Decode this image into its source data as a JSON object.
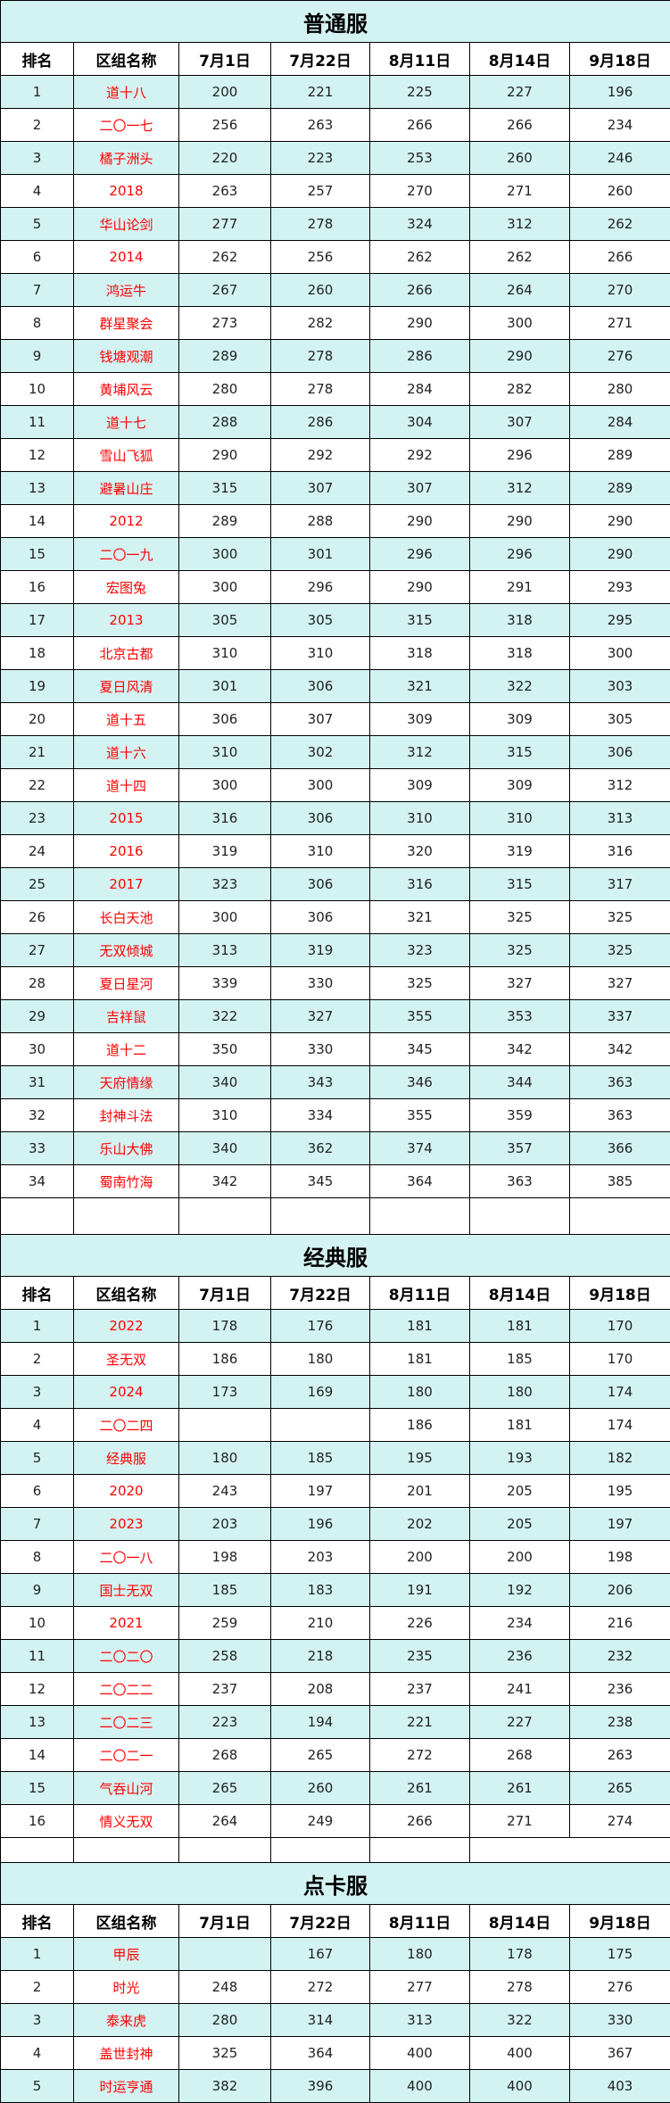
{
  "colors": {
    "band": "#d3f3f2",
    "name_text": "#ff0000",
    "border": "#000000"
  },
  "headers": [
    "排名",
    "区组名称",
    "7月1日",
    "7月22日",
    "8月11日",
    "8月14日",
    "9月18日"
  ],
  "sections": [
    {
      "title": "普通服",
      "rows": [
        [
          "1",
          "道十八",
          "200",
          "221",
          "225",
          "227",
          "196"
        ],
        [
          "2",
          "二〇一七",
          "256",
          "263",
          "266",
          "266",
          "234"
        ],
        [
          "3",
          "橘子洲头",
          "220",
          "223",
          "253",
          "260",
          "246"
        ],
        [
          "4",
          "2018",
          "263",
          "257",
          "270",
          "271",
          "260"
        ],
        [
          "5",
          "华山论剑",
          "277",
          "278",
          "324",
          "312",
          "262"
        ],
        [
          "6",
          "2014",
          "262",
          "256",
          "262",
          "262",
          "266"
        ],
        [
          "7",
          "鸿运牛",
          "267",
          "260",
          "266",
          "264",
          "270"
        ],
        [
          "8",
          "群星聚会",
          "273",
          "282",
          "290",
          "300",
          "271"
        ],
        [
          "9",
          "钱塘观潮",
          "289",
          "278",
          "286",
          "290",
          "276"
        ],
        [
          "10",
          "黄埔风云",
          "280",
          "278",
          "284",
          "282",
          "280"
        ],
        [
          "11",
          "道十七",
          "288",
          "286",
          "304",
          "307",
          "284"
        ],
        [
          "12",
          "雪山飞狐",
          "290",
          "292",
          "292",
          "296",
          "289"
        ],
        [
          "13",
          "避暑山庄",
          "315",
          "307",
          "307",
          "312",
          "289"
        ],
        [
          "14",
          "2012",
          "289",
          "288",
          "290",
          "290",
          "290"
        ],
        [
          "15",
          "二〇一九",
          "300",
          "301",
          "296",
          "296",
          "290"
        ],
        [
          "16",
          "宏图兔",
          "300",
          "296",
          "290",
          "291",
          "293"
        ],
        [
          "17",
          "2013",
          "305",
          "305",
          "315",
          "318",
          "295"
        ],
        [
          "18",
          "北京古都",
          "310",
          "310",
          "318",
          "318",
          "300"
        ],
        [
          "19",
          "夏日风清",
          "301",
          "306",
          "321",
          "322",
          "303"
        ],
        [
          "20",
          "道十五",
          "306",
          "307",
          "309",
          "309",
          "305"
        ],
        [
          "21",
          "道十六",
          "310",
          "302",
          "312",
          "315",
          "306"
        ],
        [
          "22",
          "道十四",
          "300",
          "300",
          "309",
          "309",
          "312"
        ],
        [
          "23",
          "2015",
          "316",
          "306",
          "310",
          "310",
          "313"
        ],
        [
          "24",
          "2016",
          "319",
          "310",
          "320",
          "319",
          "316"
        ],
        [
          "25",
          "2017",
          "323",
          "306",
          "316",
          "315",
          "317"
        ],
        [
          "26",
          "长白天池",
          "300",
          "306",
          "321",
          "325",
          "325"
        ],
        [
          "27",
          "无双倾城",
          "313",
          "319",
          "323",
          "325",
          "325"
        ],
        [
          "28",
          "夏日星河",
          "339",
          "330",
          "325",
          "327",
          "327"
        ],
        [
          "29",
          "吉祥鼠",
          "322",
          "327",
          "355",
          "353",
          "337"
        ],
        [
          "30",
          "道十二",
          "350",
          "330",
          "345",
          "342",
          "342"
        ],
        [
          "31",
          "天府情缘",
          "340",
          "343",
          "346",
          "344",
          "363"
        ],
        [
          "32",
          "封神斗法",
          "310",
          "334",
          "355",
          "359",
          "363"
        ],
        [
          "33",
          "乐山大佛",
          "340",
          "362",
          "374",
          "357",
          "366"
        ],
        [
          "34",
          "蜀南竹海",
          "342",
          "345",
          "364",
          "363",
          "385"
        ]
      ]
    },
    {
      "title": "经典服",
      "rows": [
        [
          "1",
          "2022",
          "178",
          "176",
          "181",
          "181",
          "170"
        ],
        [
          "2",
          "圣无双",
          "186",
          "180",
          "181",
          "185",
          "170"
        ],
        [
          "3",
          "2024",
          "173",
          "169",
          "180",
          "180",
          "174"
        ],
        [
          "4",
          "二〇二四",
          "",
          "",
          "186",
          "181",
          "174"
        ],
        [
          "5",
          "经典服",
          "180",
          "185",
          "195",
          "193",
          "182"
        ],
        [
          "6",
          "2020",
          "243",
          "197",
          "201",
          "205",
          "195"
        ],
        [
          "7",
          "2023",
          "203",
          "196",
          "202",
          "205",
          "197"
        ],
        [
          "8",
          "二〇一八",
          "198",
          "203",
          "200",
          "200",
          "198"
        ],
        [
          "9",
          "国士无双",
          "185",
          "183",
          "191",
          "192",
          "206"
        ],
        [
          "10",
          "2021",
          "259",
          "210",
          "226",
          "234",
          "216"
        ],
        [
          "11",
          "二〇二〇",
          "258",
          "218",
          "235",
          "236",
          "232"
        ],
        [
          "12",
          "二〇二二",
          "237",
          "208",
          "237",
          "241",
          "236"
        ],
        [
          "13",
          "二〇二三",
          "223",
          "194",
          "221",
          "227",
          "238"
        ],
        [
          "14",
          "二〇二一",
          "268",
          "265",
          "272",
          "268",
          "263"
        ],
        [
          "15",
          "气吞山河",
          "265",
          "260",
          "261",
          "261",
          "265"
        ],
        [
          "16",
          "情义无双",
          "264",
          "249",
          "266",
          "271",
          "274"
        ]
      ]
    },
    {
      "title": "点卡服",
      "rows": [
        [
          "1",
          "甲辰",
          "",
          "167",
          "180",
          "178",
          "175"
        ],
        [
          "2",
          "时光",
          "248",
          "272",
          "277",
          "278",
          "276"
        ],
        [
          "3",
          "泰来虎",
          "280",
          "314",
          "313",
          "322",
          "330"
        ],
        [
          "4",
          "盖世封神",
          "325",
          "364",
          "400",
          "400",
          "367"
        ],
        [
          "5",
          "时运亨通",
          "382",
          "396",
          "400",
          "400",
          "403"
        ]
      ]
    }
  ]
}
